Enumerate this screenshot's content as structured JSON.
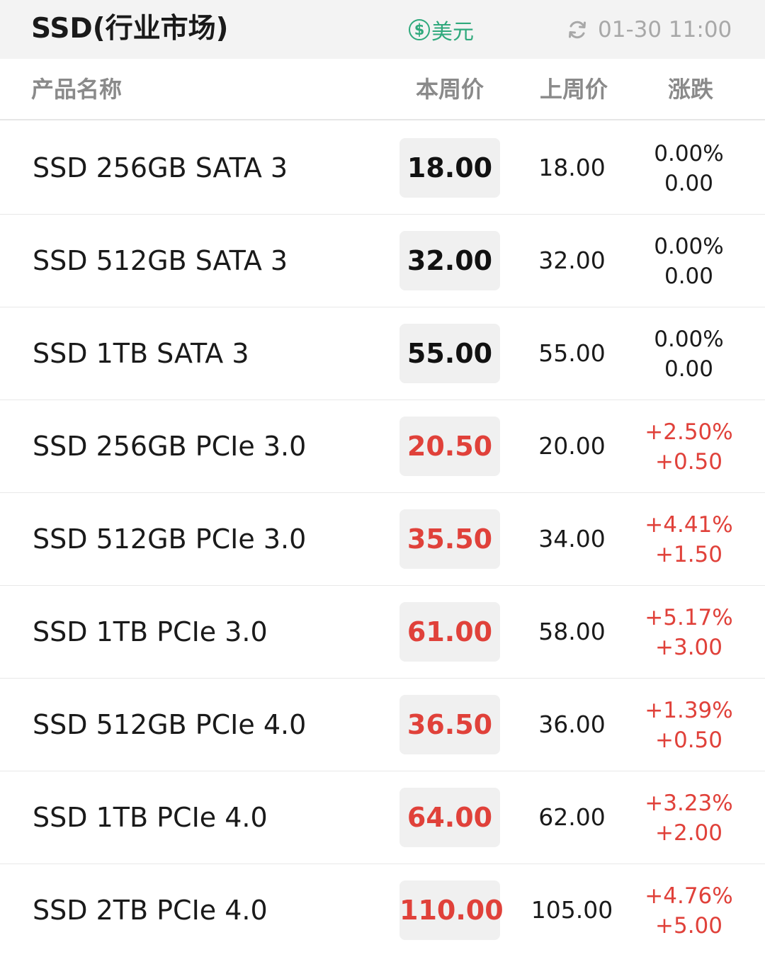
{
  "topbar": {
    "title": "SSD(行业市场)",
    "currency_symbol": "$",
    "currency_label": "美元",
    "refresh_icon": "refresh-icon",
    "updated_time": "01-30 11:00"
  },
  "table": {
    "headers": {
      "name": "产品名称",
      "current_price": "本周价",
      "previous_price": "上周价",
      "change": "涨跌"
    },
    "rows": [
      {
        "name": "SSD 256GB SATA 3",
        "current": "18.00",
        "previous": "18.00",
        "change_pct": "0.00%",
        "change_abs": "0.00",
        "trend": "flat"
      },
      {
        "name": "SSD 512GB SATA 3",
        "current": "32.00",
        "previous": "32.00",
        "change_pct": "0.00%",
        "change_abs": "0.00",
        "trend": "flat"
      },
      {
        "name": "SSD 1TB SATA 3",
        "current": "55.00",
        "previous": "55.00",
        "change_pct": "0.00%",
        "change_abs": "0.00",
        "trend": "flat"
      },
      {
        "name": "SSD 256GB PCIe 3.0",
        "current": "20.50",
        "previous": "20.00",
        "change_pct": "+2.50%",
        "change_abs": "+0.50",
        "trend": "up"
      },
      {
        "name": "SSD 512GB PCIe 3.0",
        "current": "35.50",
        "previous": "34.00",
        "change_pct": "+4.41%",
        "change_abs": "+1.50",
        "trend": "up"
      },
      {
        "name": "SSD 1TB PCIe 3.0",
        "current": "61.00",
        "previous": "58.00",
        "change_pct": "+5.17%",
        "change_abs": "+3.00",
        "trend": "up"
      },
      {
        "name": "SSD 512GB PCIe 4.0",
        "current": "36.50",
        "previous": "36.00",
        "change_pct": "+1.39%",
        "change_abs": "+0.50",
        "trend": "up"
      },
      {
        "name": "SSD 1TB PCIe 4.0",
        "current": "64.00",
        "previous": "62.00",
        "change_pct": "+3.23%",
        "change_abs": "+2.00",
        "trend": "up"
      },
      {
        "name": "SSD 2TB PCIe 4.0",
        "current": "110.00",
        "previous": "105.00",
        "change_pct": "+4.76%",
        "change_abs": "+5.00",
        "trend": "up"
      }
    ]
  },
  "colors": {
    "up": "#e0413a",
    "flat": "#1a1a1a",
    "accent": "#2fa97c",
    "muted": "#a8a8a8"
  }
}
